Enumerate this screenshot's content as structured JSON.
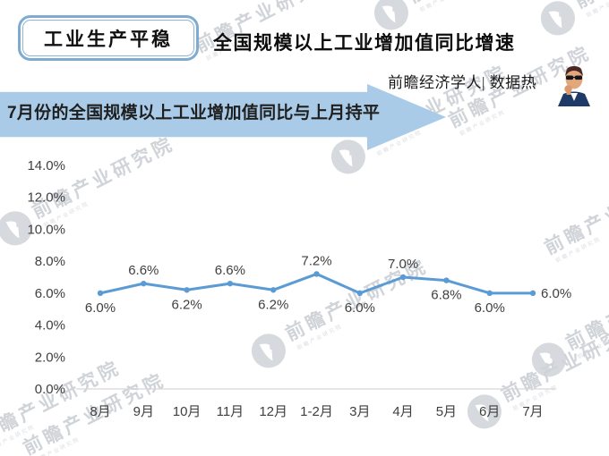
{
  "header": {
    "badge_label": "工业生产平稳",
    "title": "全国规模以上工业增加值同比增速",
    "source_credit": "前瞻经济学人| 数据热",
    "banner_text": "7月份的全国规模以上工业增加值同比与上月持平"
  },
  "watermark": {
    "brand_text": "前瞻产业研究院"
  },
  "colors": {
    "line_blue": "#5B9BD5",
    "banner_blue": "#A9CBE8",
    "badge_border_blue": "#7FABD0",
    "axis_text_gray": "#3F3F3F",
    "axis_line_gray": "#D6D6D6",
    "watermark_gray": "#D0D4D9"
  },
  "chart_data": {
    "type": "line",
    "title": "全国规模以上工业增加值同比增速",
    "categories": [
      "8月",
      "9月",
      "10月",
      "11月",
      "12月",
      "1-2月",
      "3月",
      "4月",
      "5月",
      "6月",
      "7月"
    ],
    "values": [
      6.0,
      6.6,
      6.2,
      6.6,
      6.2,
      7.2,
      6.0,
      7.0,
      6.8,
      6.0,
      6.0
    ],
    "point_labels": [
      "6.0%",
      "6.6%",
      "6.2%",
      "6.6%",
      "6.2%",
      "7.2%",
      "6.0%",
      "7.0%",
      "6.8%",
      "6.0%",
      "6.0%"
    ],
    "label_placement": [
      "below",
      "above",
      "below",
      "above",
      "below",
      "above",
      "below",
      "above",
      "below",
      "below",
      "right"
    ],
    "y_ticks": [
      "14.0%",
      "12.0%",
      "10.0%",
      "8.0%",
      "6.0%",
      "4.0%",
      "2.0%",
      "0.0%"
    ],
    "ylim": [
      0,
      14
    ],
    "xlabel": "",
    "ylabel": "",
    "grid": false,
    "legend": null,
    "line_color": "#5B9BD5",
    "marker": "circle"
  }
}
